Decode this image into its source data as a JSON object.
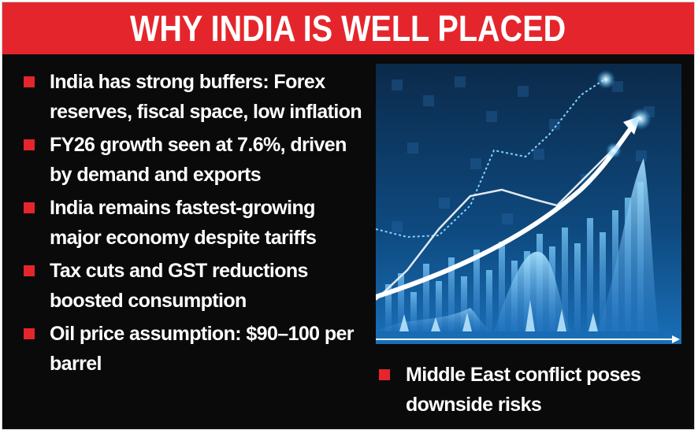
{
  "title": "WHY INDIA IS WELL PLACED",
  "colors": {
    "accent": "#e4262c",
    "background": "#0a0a0a",
    "text": "#ffffff",
    "chart_glow": "#3aa0e8"
  },
  "bullets": [
    "India has strong buffers: Forex reserves, fiscal space, low inflation",
    "FY26 growth seen at 7.6%, driven by demand and exports",
    "India remains fastest-growing major economy despite tariffs",
    "Tax cuts and GST reductions boosted consumption",
    "Oil price assumption: $90–100 per barrel"
  ],
  "side_bullet": "Middle East conflict poses downside risks",
  "illustration": {
    "icon": "rising-growth-chart-icon"
  }
}
